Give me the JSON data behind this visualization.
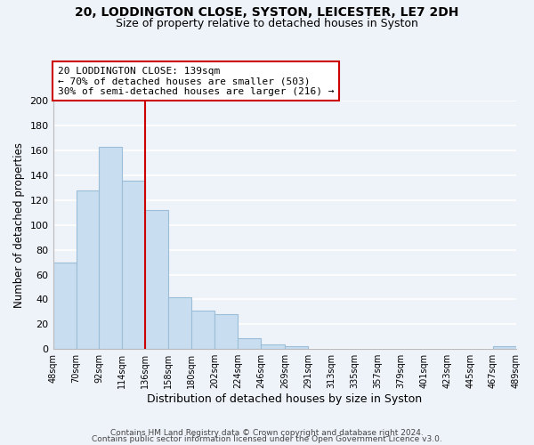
{
  "title": "20, LODDINGTON CLOSE, SYSTON, LEICESTER, LE7 2DH",
  "subtitle": "Size of property relative to detached houses in Syston",
  "xlabel": "Distribution of detached houses by size in Syston",
  "ylabel": "Number of detached properties",
  "bar_color": "#c8ddf0",
  "bar_edge_color": "#9bbdd8",
  "bin_edges": [
    48,
    70,
    92,
    114,
    136,
    158,
    180,
    202,
    224,
    246,
    269,
    291,
    313,
    335,
    357,
    379,
    401,
    423,
    445,
    467,
    489
  ],
  "bar_heights": [
    70,
    128,
    163,
    136,
    112,
    42,
    31,
    28,
    9,
    4,
    2,
    0,
    0,
    0,
    0,
    0,
    0,
    0,
    0,
    2
  ],
  "tick_labels": [
    "48sqm",
    "70sqm",
    "92sqm",
    "114sqm",
    "136sqm",
    "158sqm",
    "180sqm",
    "202sqm",
    "224sqm",
    "246sqm",
    "269sqm",
    "291sqm",
    "313sqm",
    "335sqm",
    "357sqm",
    "379sqm",
    "401sqm",
    "423sqm",
    "445sqm",
    "467sqm",
    "489sqm"
  ],
  "vline_x": 136,
  "vline_color": "#cc0000",
  "annotation_line1": "20 LODDINGTON CLOSE: 139sqm",
  "annotation_line2": "← 70% of detached houses are smaller (503)",
  "annotation_line3": "30% of semi-detached houses are larger (216) →",
  "annotation_box_color": "#ffffff",
  "annotation_box_edge": "#cc0000",
  "ylim": [
    0,
    200
  ],
  "yticks": [
    0,
    20,
    40,
    60,
    80,
    100,
    120,
    140,
    160,
    180,
    200
  ],
  "footer1": "Contains HM Land Registry data © Crown copyright and database right 2024.",
  "footer2": "Contains public sector information licensed under the Open Government Licence v3.0.",
  "bg_color": "#eef2f9",
  "grid_color": "#ffffff"
}
